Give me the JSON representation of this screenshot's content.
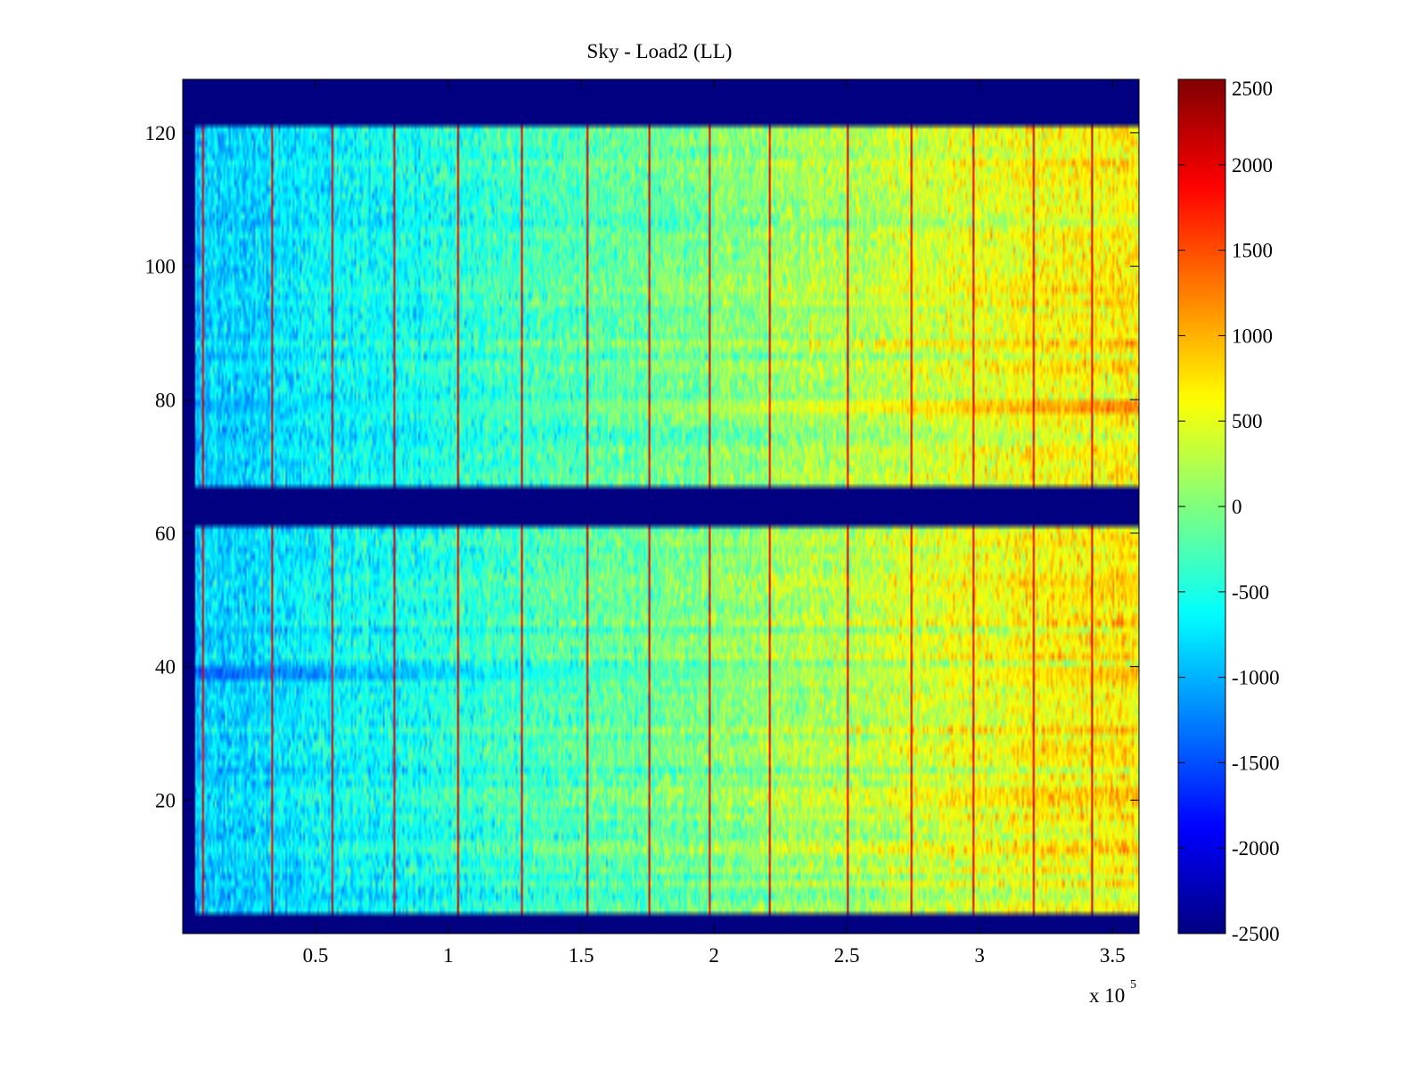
{
  "chart_data": {
    "type": "heatmap",
    "title": "Sky - Load2 (LL)",
    "xlabel": "",
    "ylabel": "",
    "x_scale_note": {
      "base": "x 10",
      "exponent": "5"
    },
    "xlim": [
      0,
      3.6
    ],
    "ylim": [
      0,
      128
    ],
    "x_ticks": [
      0.5,
      1,
      1.5,
      2,
      2.5,
      3,
      3.5
    ],
    "x_tick_labels": [
      "0.5",
      "1",
      "1.5",
      "2",
      "2.5",
      "3",
      "3.5"
    ],
    "y_ticks": [
      20,
      40,
      60,
      80,
      100,
      120
    ],
    "y_tick_labels": [
      "20",
      "40",
      "60",
      "80",
      "100",
      "120"
    ],
    "colorbar": {
      "colormap": "jet",
      "clim": [
        -2500,
        2500
      ],
      "ticks": [
        2500,
        2000,
        1500,
        1000,
        500,
        0,
        -500,
        -1000,
        -1500,
        -2000,
        -2500
      ],
      "tick_labels": [
        "2500",
        "2000",
        "1500",
        "1000",
        "500",
        "0",
        "-500",
        "-1000",
        "-1500",
        "-2000",
        "-2500"
      ]
    },
    "masked_value": -2500,
    "masked_row_ranges": [
      [
        0,
        3.5
      ],
      [
        67.5,
        61.5
      ],
      [
        121.5,
        128
      ]
    ],
    "masked_column_ranges": [
      [
        0,
        0.05
      ]
    ],
    "data_row_ranges": [
      [
        3.5,
        61.5
      ],
      [
        67.5,
        121.5
      ]
    ],
    "trend": {
      "description": "values increase from left to right",
      "x_knots": [
        0.05,
        1.0,
        2.0,
        3.0,
        3.6
      ],
      "value_knots": [
        -900,
        -450,
        0,
        500,
        700
      ]
    },
    "bright_vertical_lines_x": [
      0.07,
      0.33,
      0.56,
      0.79,
      1.03,
      1.27,
      1.52,
      1.75,
      1.98,
      2.21,
      2.5,
      2.74,
      2.97,
      3.2,
      3.42
    ],
    "bright_line_value": 2000,
    "special_rows": [
      {
        "y": 39,
        "left_value": -2000,
        "right_value": 1500
      },
      {
        "y": 79,
        "left_value": -1300,
        "right_value": 1700
      }
    ]
  }
}
